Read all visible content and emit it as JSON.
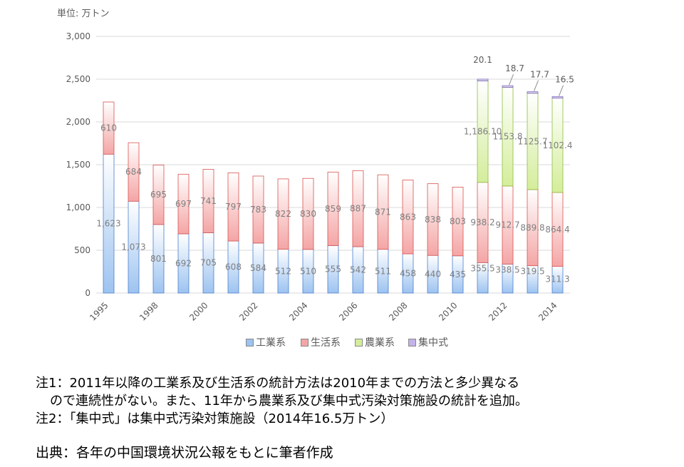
{
  "unit": "単位: 万トン",
  "chart_data": {
    "type": "bar",
    "stacked": true,
    "categories": [
      "1995",
      "1997",
      "1998",
      "1999",
      "2000",
      "2001",
      "2002",
      "2003",
      "2004",
      "2005",
      "2006",
      "2007",
      "2008",
      "2009",
      "2010",
      "2011",
      "2012",
      "2013",
      "2014"
    ],
    "x_tick_labels": [
      "1995",
      "",
      "1998",
      "",
      "2000",
      "",
      "2002",
      "",
      "2004",
      "",
      "2006",
      "",
      "2008",
      "",
      "2010",
      "",
      "2012",
      "",
      "2014"
    ],
    "y_ticks": [
      "0",
      "500",
      "1,000",
      "1,500",
      "2,000",
      "2,500",
      "3,000"
    ],
    "ylim": [
      0,
      3000
    ],
    "grid": true,
    "legend_position": "bottom",
    "series": [
      {
        "name": "工業系",
        "color": "#9dc3f0",
        "values": [
          1623,
          1073,
          801,
          692,
          705,
          608,
          584,
          512,
          510,
          555,
          542,
          511,
          458,
          440,
          435,
          355.5,
          338.5,
          319.5,
          311.3
        ],
        "labels": [
          "1,623",
          "1,073",
          "801",
          "692",
          "705",
          "608",
          "584",
          "512",
          "510",
          "555",
          "542",
          "511",
          "458",
          "440",
          "435",
          "355.5",
          "338.5",
          "319.5",
          "311.3"
        ]
      },
      {
        "name": "生活系",
        "color": "#f4a5a5",
        "values": [
          610,
          684,
          695,
          697,
          741,
          797,
          783,
          822,
          830,
          859,
          887,
          871,
          863,
          838,
          803,
          938.2,
          912.7,
          889.8,
          864.4
        ],
        "labels": [
          "610",
          "684",
          "695",
          "697",
          "741",
          "797",
          "783",
          "822",
          "830",
          "859",
          "887",
          "871",
          "863",
          "838",
          "803",
          "938.2",
          "912.7",
          "889.8",
          "864.4"
        ]
      },
      {
        "name": "農業系",
        "color": "#d4ed9a",
        "values": [
          0,
          0,
          0,
          0,
          0,
          0,
          0,
          0,
          0,
          0,
          0,
          0,
          0,
          0,
          0,
          1186.1,
          1153.8,
          1125.7,
          1102.4
        ],
        "labels": [
          "",
          "",
          "",
          "",
          "",
          "",
          "",
          "",
          "",
          "",
          "",
          "",
          "",
          "",
          "",
          "1,186.10",
          "1153.8",
          "1125.7",
          "1102.4"
        ]
      },
      {
        "name": "集中式",
        "color": "#c3b3e8",
        "values": [
          0,
          0,
          0,
          0,
          0,
          0,
          0,
          0,
          0,
          0,
          0,
          0,
          0,
          0,
          0,
          20.1,
          18.7,
          17.7,
          16.5
        ],
        "labels": [
          "",
          "",
          "",
          "",
          "",
          "",
          "",
          "",
          "",
          "",
          "",
          "",
          "",
          "",
          "",
          "20.1",
          "18.7",
          "17.7",
          "16.5"
        ]
      }
    ]
  },
  "notes": {
    "line1": "注1：2011年以降の工業系及び生活系の統計方法は2010年までの方法と多少異なる",
    "line2": "ので連続性がない。また、11年から農業系及び集中式汚染対策施設の統計を追加。",
    "line3": "注2：「集中式」は集中式汚染対策施設（2014年16.5万トン）"
  },
  "source": "出典：各年の中国環境状況公報をもとに筆者作成"
}
